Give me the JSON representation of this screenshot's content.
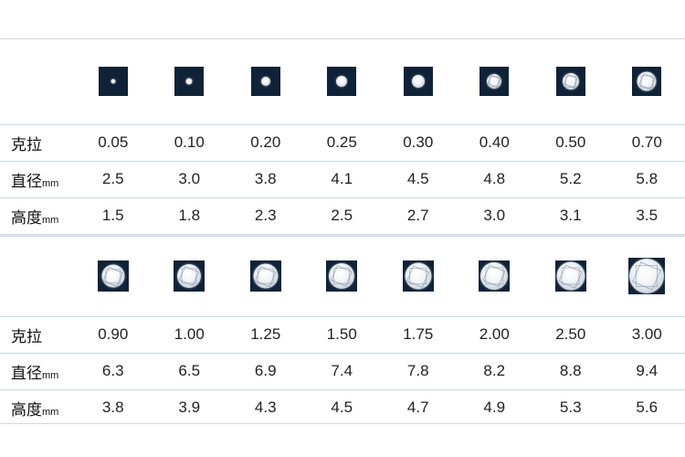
{
  "groups": [
    {
      "gems": [
        {
          "box": 32,
          "d": 5,
          "faceted": false
        },
        {
          "box": 32,
          "d": 7,
          "faceted": false
        },
        {
          "box": 32,
          "d": 10,
          "faceted": false
        },
        {
          "box": 32,
          "d": 12,
          "faceted": false
        },
        {
          "box": 32,
          "d": 14,
          "faceted": false
        },
        {
          "box": 32,
          "d": 16,
          "faceted": true
        },
        {
          "box": 32,
          "d": 18,
          "faceted": true
        },
        {
          "box": 32,
          "d": 21,
          "faceted": true
        }
      ],
      "rows": [
        {
          "label": "克拉",
          "unit": "",
          "values": [
            "0.05",
            "0.10",
            "0.20",
            "0.25",
            "0.30",
            "0.40",
            "0.50",
            "0.70"
          ]
        },
        {
          "label": "直径",
          "unit": "mm",
          "values": [
            "2.5",
            "3.0",
            "3.8",
            "4.1",
            "4.5",
            "4.8",
            "5.2",
            "5.8"
          ]
        },
        {
          "label": "高度",
          "unit": "mm",
          "values": [
            "1.5",
            "1.8",
            "2.3",
            "2.5",
            "2.7",
            "3.0",
            "3.1",
            "3.5"
          ]
        }
      ]
    },
    {
      "gems": [
        {
          "box": 34,
          "d": 25,
          "faceted": true
        },
        {
          "box": 34,
          "d": 26,
          "faceted": true
        },
        {
          "box": 34,
          "d": 27,
          "faceted": true
        },
        {
          "box": 34,
          "d": 28,
          "faceted": true
        },
        {
          "box": 34,
          "d": 29,
          "faceted": true
        },
        {
          "box": 34,
          "d": 30,
          "faceted": true
        },
        {
          "box": 34,
          "d": 31,
          "faceted": true
        },
        {
          "box": 40,
          "d": 38,
          "faceted": true
        }
      ],
      "rows": [
        {
          "label": "克拉",
          "unit": "",
          "values": [
            "0.90",
            "1.00",
            "1.25",
            "1.50",
            "1.75",
            "2.00",
            "2.50",
            "3.00"
          ]
        },
        {
          "label": "直径",
          "unit": "mm",
          "values": [
            "6.3",
            "6.5",
            "6.9",
            "7.4",
            "7.8",
            "8.2",
            "8.8",
            "9.4"
          ]
        },
        {
          "label": "高度",
          "unit": "mm",
          "values": [
            "3.8",
            "3.9",
            "4.3",
            "4.5",
            "4.7",
            "4.9",
            "5.3",
            "5.6"
          ]
        }
      ]
    }
  ]
}
